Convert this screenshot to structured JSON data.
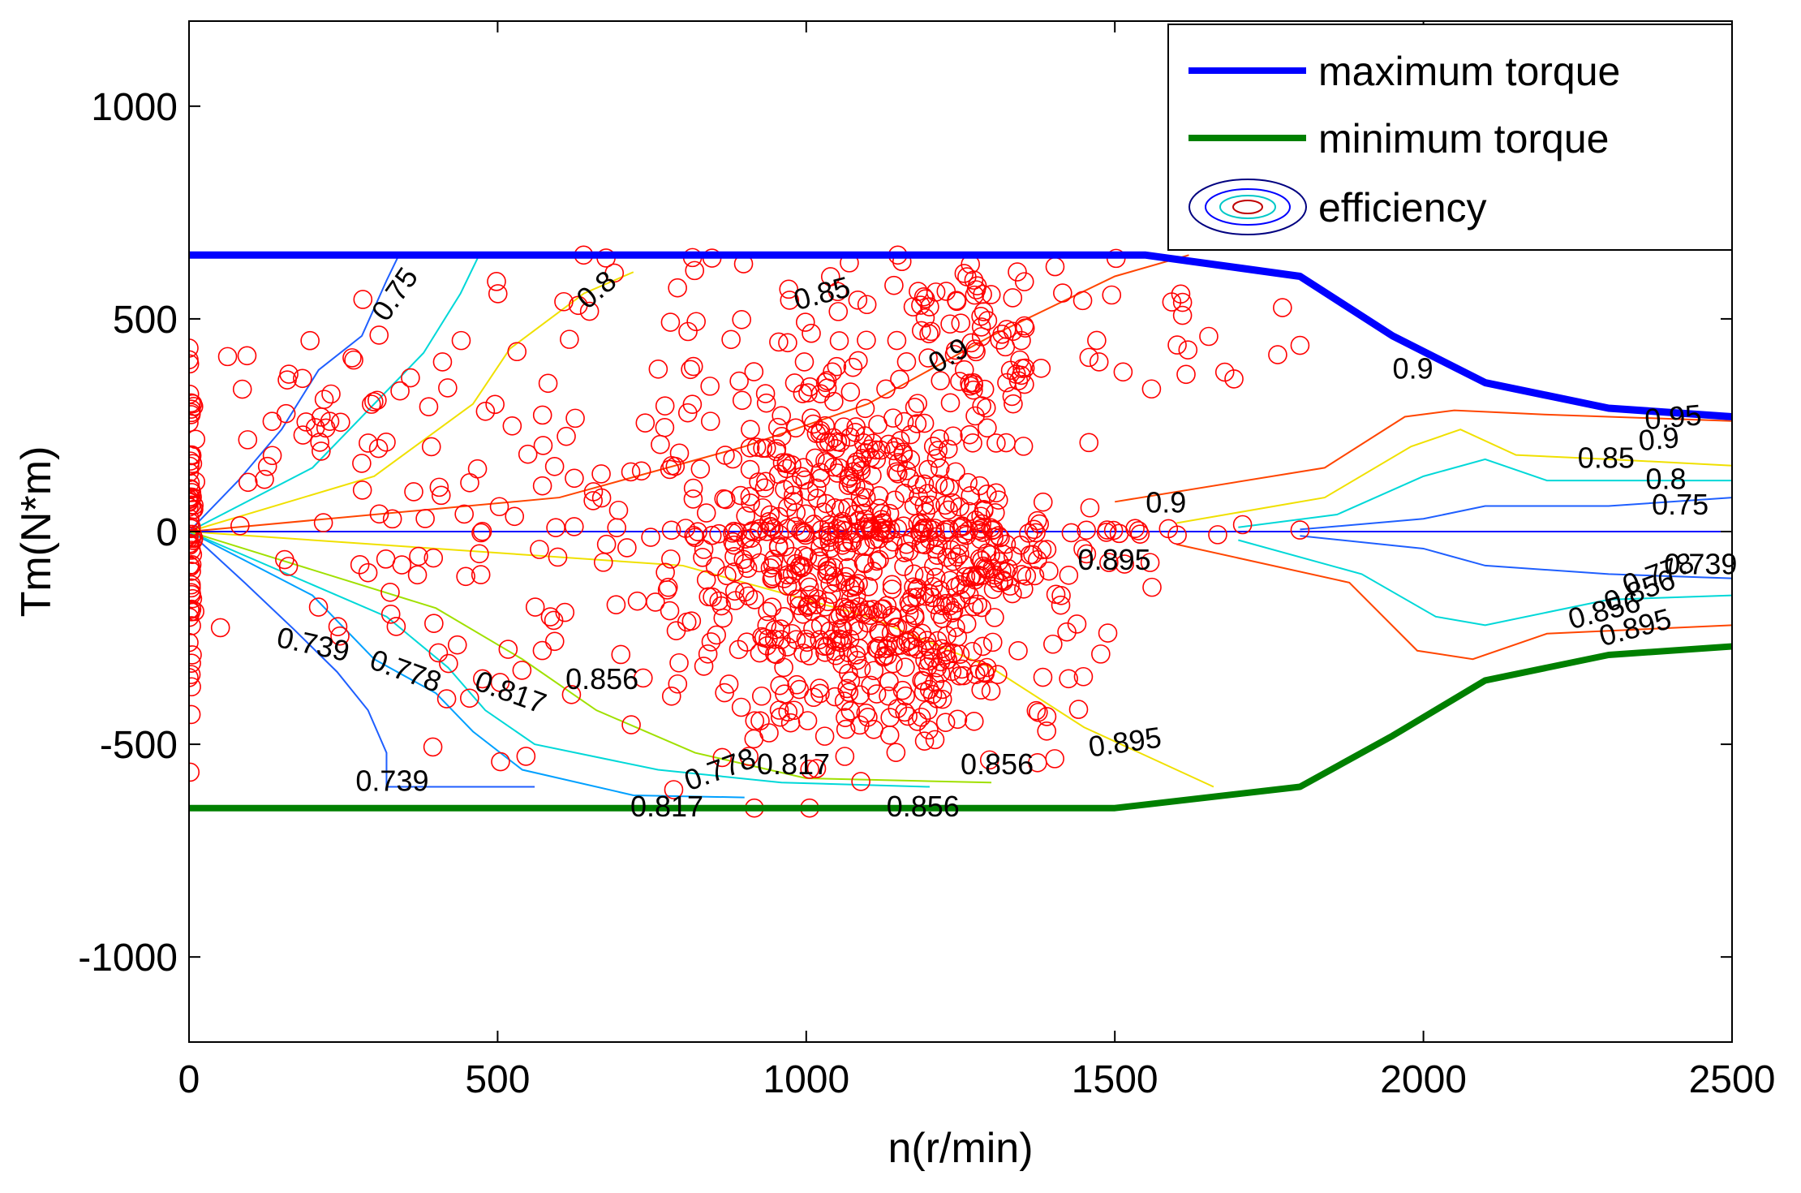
{
  "chart_data": {
    "type": "scatter",
    "xlabel": "n(r/min)",
    "ylabel": "Tm(N*m)",
    "xlim": [
      0,
      2500
    ],
    "ylim": [
      -1200,
      1200
    ],
    "xticks": [
      0,
      500,
      1000,
      1500,
      2000,
      2500
    ],
    "yticks": [
      -1000,
      -500,
      0,
      500,
      1000
    ],
    "colors": {
      "max_torque": "#0000ff",
      "min_torque": "#008000",
      "points": "#ff0000",
      "zero_line": "#0000ff"
    },
    "legend": {
      "location": "top-right",
      "entries": [
        {
          "key": "max",
          "label": "maximum torque"
        },
        {
          "key": "min",
          "label": "minimum torque"
        },
        {
          "key": "eff",
          "label": "efficiency"
        }
      ]
    },
    "series": [
      {
        "name": "maximum torque",
        "x": [
          0,
          1550,
          1700,
          1800,
          1950,
          2100,
          2300,
          2500
        ],
        "y": [
          650,
          650,
          620,
          600,
          460,
          350,
          290,
          270
        ]
      },
      {
        "name": "minimum torque",
        "x": [
          0,
          1500,
          1800,
          1950,
          2100,
          2300,
          2500
        ],
        "y": [
          -650,
          -650,
          -600,
          -480,
          -350,
          -290,
          -270
        ]
      }
    ],
    "contours": [
      {
        "level": "0.75",
        "color": "#1f5fff",
        "x": [
          0,
          80,
          150,
          210,
          280,
          320,
          340
        ],
        "y": [
          0,
          120,
          240,
          380,
          460,
          590,
          650
        ]
      },
      {
        "level": "0.8",
        "color": "#00d8d8",
        "x": [
          0,
          200,
          300,
          380,
          440,
          470
        ],
        "y": [
          0,
          150,
          300,
          420,
          560,
          650
        ]
      },
      {
        "level": "0.85",
        "color": "#f0e000",
        "x": [
          0,
          300,
          460,
          520,
          640,
          720
        ],
        "y": [
          0,
          130,
          300,
          430,
          560,
          610
        ]
      },
      {
        "level": "0.9",
        "color": "#ff4500",
        "x": [
          0,
          600,
          900,
          1100,
          1300,
          1500,
          1620
        ],
        "y": [
          0,
          80,
          200,
          300,
          460,
          600,
          650
        ]
      },
      {
        "level": "0.739",
        "color": "#1f5fff",
        "x": [
          0,
          90,
          170,
          240,
          290,
          320,
          320,
          560
        ],
        "y": [
          0,
          -120,
          -230,
          -330,
          -420,
          -520,
          -600,
          -600
        ]
      },
      {
        "level": "0.778",
        "color": "#00a0ff",
        "x": [
          0,
          200,
          300,
          400,
          460,
          540,
          720,
          900
        ],
        "y": [
          0,
          -150,
          -300,
          -380,
          -470,
          -560,
          -620,
          -625
        ]
      },
      {
        "level": "0.817",
        "color": "#00d8d8",
        "x": [
          0,
          320,
          420,
          480,
          560,
          760,
          960,
          1200
        ],
        "y": [
          0,
          -200,
          -320,
          -420,
          -500,
          -560,
          -590,
          -600
        ]
      },
      {
        "level": "0.856",
        "color": "#a0e000",
        "x": [
          0,
          400,
          540,
          660,
          820,
          1000,
          1300
        ],
        "y": [
          0,
          -180,
          -300,
          -420,
          -520,
          -580,
          -590
        ]
      },
      {
        "level": "0.895",
        "color": "#f0e000",
        "x": [
          0,
          800,
          1100,
          1300,
          1450,
          1660
        ],
        "y": [
          0,
          -80,
          -200,
          -320,
          -460,
          -600
        ]
      },
      {
        "level": "0.9 (high-speed)",
        "color": "#ff4500",
        "x": [
          1500,
          1840,
          1970,
          2050,
          2200,
          2500
        ],
        "y": [
          70,
          150,
          270,
          285,
          275,
          260
        ]
      },
      {
        "level": "0.85 (high-speed)",
        "color": "#f0e000",
        "x": [
          1600,
          1840,
          1980,
          2060,
          2150,
          2300,
          2500
        ],
        "y": [
          20,
          80,
          200,
          240,
          180,
          170,
          155
        ]
      },
      {
        "level": "0.8 (high-speed)",
        "color": "#00d8d8",
        "x": [
          1700,
          1860,
          2000,
          2100,
          2200,
          2500
        ],
        "y": [
          10,
          40,
          130,
          170,
          120,
          120
        ]
      },
      {
        "level": "0.75 (high-speed)",
        "color": "#1f5fff",
        "x": [
          1800,
          2000,
          2100,
          2300,
          2500
        ],
        "y": [
          5,
          30,
          60,
          60,
          80
        ]
      },
      {
        "level": "0.739 (high-speed)",
        "color": "#1f5fff",
        "x": [
          1800,
          2000,
          2100,
          2300,
          2500
        ],
        "y": [
          -10,
          -40,
          -80,
          -100,
          -110
        ]
      },
      {
        "level": "0.856 (high-speed)",
        "color": "#00d8d8",
        "x": [
          1700,
          1900,
          2020,
          2100,
          2300,
          2500
        ],
        "y": [
          -20,
          -100,
          -200,
          -220,
          -160,
          -150
        ]
      },
      {
        "level": "0.895 (high-speed)",
        "color": "#ff4500",
        "x": [
          1600,
          1880,
          1990,
          2080,
          2200,
          2500
        ],
        "y": [
          -30,
          -120,
          -280,
          -300,
          -240,
          -220
        ]
      }
    ],
    "contour_labels": [
      {
        "text": "0.75",
        "x": 320,
        "y": 490,
        "rotate": -55
      },
      {
        "text": "0.8",
        "x": 645,
        "y": 520,
        "rotate": -40
      },
      {
        "text": "0.85",
        "x": 985,
        "y": 520,
        "rotate": -15
      },
      {
        "text": "0.9",
        "x": 1210,
        "y": 370,
        "rotate": -30
      },
      {
        "text": "0.9",
        "x": 1950,
        "y": 360,
        "rotate": 0
      },
      {
        "text": "0.95",
        "x": 2360,
        "y": 240,
        "rotate": -5
      },
      {
        "text": "0.9",
        "x": 2350,
        "y": 190,
        "rotate": -5
      },
      {
        "text": "0.85",
        "x": 2250,
        "y": 150,
        "rotate": 0
      },
      {
        "text": "0.8",
        "x": 2360,
        "y": 100,
        "rotate": 0
      },
      {
        "text": "0.75",
        "x": 2370,
        "y": 40,
        "rotate": 0
      },
      {
        "text": "0.9",
        "x": 1550,
        "y": 45,
        "rotate": 0
      },
      {
        "text": "0.895",
        "x": 1440,
        "y": -90,
        "rotate": 0
      },
      {
        "text": "0.739",
        "x": 2390,
        "y": -100,
        "rotate": 0
      },
      {
        "text": "0.778",
        "x": 2330,
        "y": -150,
        "rotate": -20
      },
      {
        "text": "0.856",
        "x": 2300,
        "y": -190,
        "rotate": -20
      },
      {
        "text": "0.856",
        "x": 2240,
        "y": -230,
        "rotate": -15
      },
      {
        "text": "0.895",
        "x": 2290,
        "y": -270,
        "rotate": -15
      },
      {
        "text": "0.739",
        "x": 140,
        "y": -270,
        "rotate": 12
      },
      {
        "text": "0.778",
        "x": 290,
        "y": -320,
        "rotate": 20
      },
      {
        "text": "0.817",
        "x": 460,
        "y": -370,
        "rotate": 20
      },
      {
        "text": "0.856",
        "x": 610,
        "y": -370,
        "rotate": 0
      },
      {
        "text": "0.895",
        "x": 1460,
        "y": -530,
        "rotate": -8
      },
      {
        "text": "0.856",
        "x": 1250,
        "y": -570,
        "rotate": 0
      },
      {
        "text": "0.817",
        "x": 920,
        "y": -570,
        "rotate": 0
      },
      {
        "text": "0.778",
        "x": 810,
        "y": -610,
        "rotate": -20
      },
      {
        "text": "0.739",
        "x": 270,
        "y": -610,
        "rotate": 0
      },
      {
        "text": "0.817",
        "x": 715,
        "y": -670,
        "rotate": 0
      },
      {
        "text": "0.856",
        "x": 1130,
        "y": -670,
        "rotate": 0
      }
    ],
    "points": {
      "name": "operating points",
      "clusters": [
        {
          "cx": 1060,
          "cy": 20,
          "sx": 140,
          "sy": 220,
          "count": 340
        },
        {
          "cx": 1080,
          "cy": -200,
          "sx": 130,
          "sy": 160,
          "count": 200
        },
        {
          "cx": 1100,
          "cy": 0,
          "sx": 300,
          "sy": 8,
          "count": 70
        },
        {
          "cx": 1300,
          "cy": 450,
          "sx": 100,
          "sy": 120,
          "count": 60
        },
        {
          "cx": 1250,
          "cy": -150,
          "sx": 130,
          "sy": 200,
          "count": 110
        },
        {
          "cx": 700,
          "cy": 200,
          "sx": 250,
          "sy": 180,
          "count": 70
        },
        {
          "cx": 500,
          "cy": -250,
          "sx": 200,
          "sy": 180,
          "count": 50
        },
        {
          "cx": 250,
          "cy": 250,
          "sx": 150,
          "sy": 150,
          "count": 50
        },
        {
          "cx": 3,
          "cy": 0,
          "sx": 3,
          "sy": 180,
          "count": 70
        },
        {
          "cx": 1300,
          "cy": -100,
          "sx": 30,
          "sy": 30,
          "count": 25
        },
        {
          "cx": 1200,
          "cy": -350,
          "sx": 40,
          "sy": 60,
          "count": 25
        },
        {
          "cx": 1250,
          "cy": 580,
          "sx": 200,
          "sy": 50,
          "count": 30
        },
        {
          "cx": 1650,
          "cy": 420,
          "sx": 100,
          "sy": 40,
          "count": 10
        },
        {
          "cx": 700,
          "cy": 550,
          "sx": 100,
          "sy": 60,
          "count": 10
        }
      ]
    }
  }
}
